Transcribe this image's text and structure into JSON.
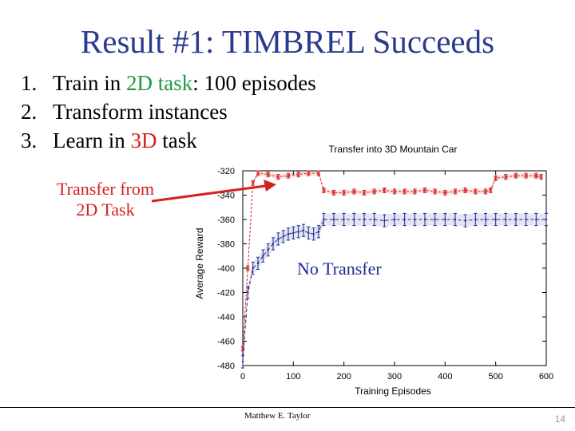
{
  "slide": {
    "title": "Result #1: TIMBREL Succeeds",
    "steps": [
      {
        "num": "1.",
        "pre": "Train in ",
        "hl": "2D task",
        "post": ": 100 episodes",
        "hl_color": "green"
      },
      {
        "num": "2.",
        "pre": "Transform instances",
        "hl": "",
        "post": "",
        "hl_color": ""
      },
      {
        "num": "3.",
        "pre": "Learn in ",
        "hl": "3D",
        "post": " task",
        "hl_color": "red"
      }
    ],
    "callout_transfer": [
      "Transfer from",
      "2D Task"
    ],
    "callout_no_transfer": "No Transfer",
    "footer_author": "Matthew E. Taylor",
    "page_number": "14"
  },
  "colors": {
    "title": "#2b3a8f",
    "transfer_series": "#d42020",
    "no_transfer_series": "#1e2a8f",
    "arrow": "#d42020"
  },
  "chart_data": {
    "type": "line",
    "title": "Transfer into 3D Mountain Car",
    "xlabel": "Training Episodes",
    "ylabel": "Average Reward",
    "xlim": [
      0,
      600
    ],
    "ylim": [
      -480,
      -320
    ],
    "xticks": [
      0,
      100,
      200,
      300,
      400,
      500,
      600
    ],
    "yticks": [
      -320,
      -340,
      -360,
      -380,
      -400,
      -420,
      -440,
      -460,
      -480
    ],
    "grid": false,
    "series": [
      {
        "name": "",
        "color": "#d42020",
        "x": [
          0,
          10,
          20,
          30,
          50,
          70,
          90,
          110,
          130,
          150,
          160,
          180,
          200,
          220,
          240,
          260,
          280,
          300,
          320,
          340,
          360,
          380,
          400,
          420,
          440,
          460,
          480,
          490,
          500,
          520,
          540,
          560,
          580,
          590
        ],
        "y": [
          -466,
          -400,
          -330,
          -322,
          -323,
          -325,
          -324,
          -323,
          -322,
          -322,
          -336,
          -338,
          -338,
          -337,
          -338,
          -337,
          -336,
          -337,
          -337,
          -337,
          -336,
          -337,
          -338,
          -337,
          -336,
          -337,
          -337,
          -336,
          -326,
          -325,
          -324,
          -324,
          -324,
          -325
        ],
        "err": 2
      },
      {
        "name": "",
        "color": "#1e2a8f",
        "x": [
          0,
          10,
          20,
          30,
          40,
          50,
          60,
          70,
          80,
          90,
          100,
          110,
          120,
          130,
          140,
          150,
          160,
          180,
          200,
          220,
          240,
          260,
          280,
          300,
          320,
          340,
          360,
          380,
          400,
          420,
          440,
          460,
          480,
          500,
          520,
          540,
          560,
          580,
          600
        ],
        "y": [
          -477,
          -420,
          -400,
          -396,
          -390,
          -385,
          -380,
          -376,
          -374,
          -372,
          -371,
          -370,
          -369,
          -371,
          -372,
          -370,
          -360,
          -360,
          -360,
          -360,
          -360,
          -360,
          -361,
          -360,
          -360,
          -360,
          -360,
          -360,
          -360,
          -360,
          -361,
          -360,
          -360,
          -360,
          -360,
          -360,
          -360,
          -360,
          -360
        ],
        "err": 5
      }
    ]
  }
}
